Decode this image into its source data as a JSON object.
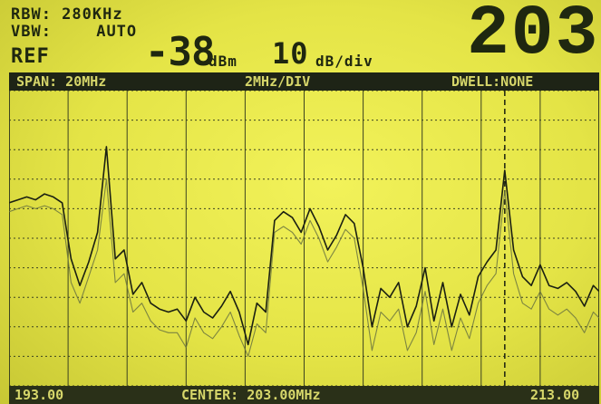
{
  "header": {
    "rbw": "RBW: 280KHz",
    "vbw_label": "VBW:",
    "vbw_value": "AUTO",
    "ref_label": "REF",
    "ref_value": "-38",
    "ref_unit": "dBm",
    "scale_value": "10",
    "scale_unit": "dB/div",
    "channel": "203"
  },
  "status_bar": {
    "span": "SPAN: 20MHz",
    "div": "2MHz/DIV",
    "dwell": "DWELL:NONE"
  },
  "footer": {
    "start": "193.00",
    "center": "CENTER: 203.00MHz",
    "stop": "213.00"
  },
  "chart_data": {
    "type": "line",
    "xlim": [
      193.0,
      213.0
    ],
    "ylim": [
      -138,
      -38
    ],
    "x_unit": "MHz",
    "y_unit": "dBm",
    "grid": true,
    "marker_x": 209.8,
    "series": [
      {
        "x": [
          193.0,
          193.3,
          193.6,
          193.9,
          194.2,
          194.5,
          194.8,
          195.1,
          195.4,
          195.7,
          196.0,
          196.3,
          196.6,
          196.9,
          197.2,
          197.5,
          197.8,
          198.1,
          198.4,
          198.7,
          199.0,
          199.3,
          199.6,
          199.9,
          200.2,
          200.5,
          200.8,
          201.1,
          201.4,
          201.7,
          202.0,
          202.3,
          202.6,
          202.9,
          203.2,
          203.5,
          203.8,
          204.1,
          204.4,
          204.7,
          205.0,
          205.3,
          205.6,
          205.9,
          206.2,
          206.5,
          206.8,
          207.1,
          207.4,
          207.7,
          208.0,
          208.3,
          208.6,
          208.9,
          209.2,
          209.5,
          209.8,
          210.1,
          210.4,
          210.7,
          211.0,
          211.3,
          211.6,
          211.9,
          212.2,
          212.5,
          212.8,
          213.0
        ],
        "y": [
          -76,
          -75,
          -74,
          -75,
          -73,
          -74,
          -76,
          -95,
          -104,
          -96,
          -86,
          -57,
          -95,
          -92,
          -107,
          -103,
          -110,
          -112,
          -113,
          -112,
          -116,
          -108,
          -113,
          -115,
          -111,
          -106,
          -113,
          -124,
          -110,
          -113,
          -82,
          -79,
          -81,
          -86,
          -78,
          -84,
          -92,
          -87,
          -80,
          -83,
          -98,
          -118,
          -105,
          -108,
          -103,
          -118,
          -111,
          -98,
          -116,
          -103,
          -118,
          -107,
          -114,
          -101,
          -96,
          -92,
          -65,
          -92,
          -101,
          -104,
          -97,
          -104,
          -105,
          -103,
          -106,
          -111,
          -104,
          -106
        ]
      },
      {
        "x": [
          193.0,
          193.3,
          193.6,
          193.9,
          194.2,
          194.5,
          194.8,
          195.1,
          195.4,
          195.7,
          196.0,
          196.3,
          196.6,
          196.9,
          197.2,
          197.5,
          197.8,
          198.1,
          198.4,
          198.7,
          199.0,
          199.3,
          199.6,
          199.9,
          200.2,
          200.5,
          200.8,
          201.1,
          201.4,
          201.7,
          202.0,
          202.3,
          202.6,
          202.9,
          203.2,
          203.5,
          203.8,
          204.1,
          204.4,
          204.7,
          205.0,
          205.3,
          205.6,
          205.9,
          206.2,
          206.5,
          206.8,
          207.1,
          207.4,
          207.7,
          208.0,
          208.3,
          208.6,
          208.9,
          209.2,
          209.5,
          209.8,
          210.1,
          210.4,
          210.7,
          211.0,
          211.3,
          211.6,
          211.9,
          212.2,
          212.5,
          212.8,
          213.0
        ],
        "y": [
          -79,
          -78,
          -77,
          -78,
          -77,
          -78,
          -80,
          -103,
          -110,
          -101,
          -92,
          -68,
          -103,
          -100,
          -113,
          -110,
          -116,
          -119,
          -120,
          -120,
          -125,
          -115,
          -120,
          -122,
          -118,
          -113,
          -121,
          -128,
          -117,
          -120,
          -86,
          -84,
          -86,
          -90,
          -82,
          -88,
          -96,
          -91,
          -85,
          -88,
          -105,
          -126,
          -113,
          -116,
          -112,
          -126,
          -120,
          -106,
          -124,
          -112,
          -126,
          -115,
          -122,
          -110,
          -104,
          -100,
          -72,
          -100,
          -110,
          -112,
          -106,
          -112,
          -114,
          -112,
          -115,
          -120,
          -113,
          -115
        ]
      }
    ]
  }
}
